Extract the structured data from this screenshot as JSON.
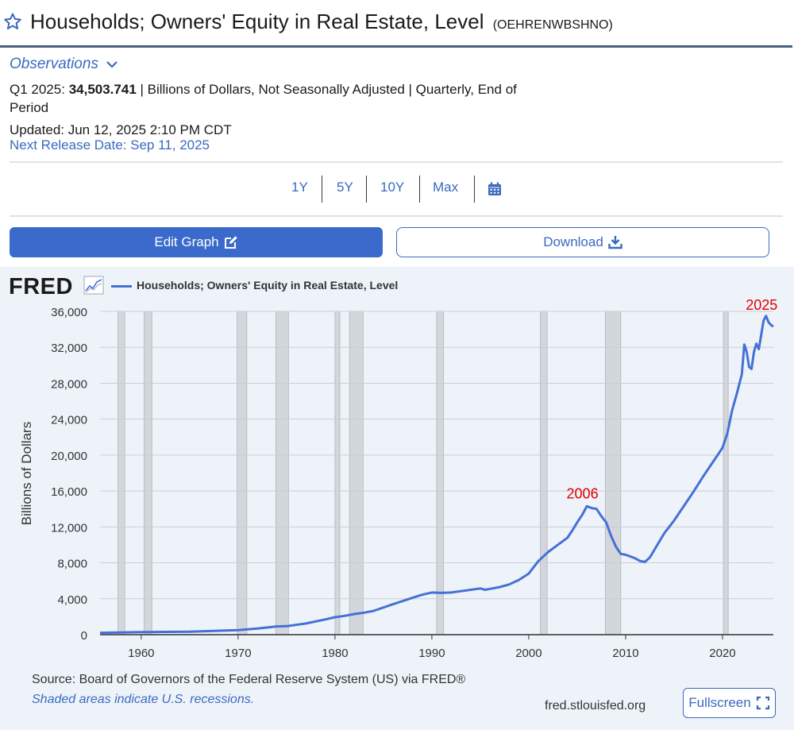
{
  "header": {
    "title": "Households; Owners' Equity in Real Estate, Level",
    "series_id": "(OEHRENWBSHNO)",
    "star_icon": "star-outline-icon"
  },
  "observations": {
    "toggle_label": "Observations",
    "period": "Q1 2025:",
    "value": "34,503.741",
    "details": "| Billions of Dollars, Not Seasonally Adjusted | Quarterly, End of Period",
    "updated": "Updated: Jun 12, 2025 2:10 PM CDT",
    "next_release": "Next Release Date: Sep 11, 2025"
  },
  "ranges": [
    "1Y",
    "5Y",
    "10Y",
    "Max"
  ],
  "buttons": {
    "edit": "Edit Graph",
    "download": "Download",
    "fullscreen": "Fullscreen"
  },
  "chart_header": {
    "logo": "FRED",
    "legend": "Households; Owners' Equity in Real Estate, Level"
  },
  "footer": {
    "source": "Source: Board of Governors of the Federal Reserve System (US) via FRED®",
    "shaded_note": "Shaded areas indicate U.S. recessions.",
    "url": "fred.stlouisfed.org"
  },
  "colors": {
    "line": "#4570d6",
    "accent": "#3a6acb",
    "annotation": "#e00000",
    "recession": "#d3d6da"
  },
  "chart_data": {
    "type": "line",
    "title": "Households; Owners' Equity in Real Estate, Level",
    "xlabel": "",
    "ylabel": "Billions of Dollars",
    "xlim": [
      1955.75,
      2025.25
    ],
    "ylim": [
      0,
      36000
    ],
    "yticks": [
      0,
      4000,
      8000,
      12000,
      16000,
      20000,
      24000,
      28000,
      32000,
      36000
    ],
    "ytick_labels": [
      "0",
      "4,000",
      "8,000",
      "12,000",
      "16,000",
      "20,000",
      "24,000",
      "28,000",
      "32,000",
      "36,000"
    ],
    "xticks": [
      1960,
      1970,
      1980,
      1990,
      2000,
      2010,
      2020
    ],
    "grid": "horizontal",
    "recessions": [
      [
        1957.6,
        1958.3
      ],
      [
        1960.3,
        1961.1
      ],
      [
        1969.9,
        1970.9
      ],
      [
        1973.9,
        1975.2
      ],
      [
        1980.0,
        1980.5
      ],
      [
        1981.5,
        1982.9
      ],
      [
        1990.5,
        1991.2
      ],
      [
        2001.2,
        2001.9
      ],
      [
        2007.9,
        2009.5
      ],
      [
        2020.1,
        2020.3
      ]
    ],
    "annotations": [
      {
        "text": "2006",
        "x": 2006.2,
        "y": 14300
      },
      {
        "text": "2025",
        "x": 2024.7,
        "y": 35300
      }
    ],
    "series": [
      {
        "name": "Households; Owners' Equity in Real Estate, Level",
        "x": [
          1955.75,
          1960,
          1965,
          1970,
          1972,
          1974,
          1975,
          1977,
          1979,
          1980,
          1981,
          1982,
          1983,
          1984,
          1986,
          1988,
          1989,
          1990,
          1991,
          1992,
          1993,
          1994,
          1995,
          1995.5,
          1996,
          1997,
          1998,
          1999,
          2000,
          2001,
          2002,
          2003,
          2004,
          2004.5,
          2005,
          2005.5,
          2006,
          2006.5,
          2007,
          2007.5,
          2008,
          2008.5,
          2009,
          2009.5,
          2010,
          2011,
          2011.5,
          2012,
          2012.5,
          2013,
          2014,
          2015,
          2016,
          2017,
          2018,
          2019,
          2020,
          2020.5,
          2021,
          2021.5,
          2022,
          2022.25,
          2022.5,
          2022.75,
          2023,
          2023.25,
          2023.5,
          2023.75,
          2024,
          2024.25,
          2024.5,
          2024.75,
          2025,
          2025.25
        ],
        "values": [
          200,
          280,
          330,
          500,
          680,
          920,
          950,
          1250,
          1700,
          1950,
          2100,
          2300,
          2450,
          2650,
          3400,
          4100,
          4450,
          4700,
          4650,
          4700,
          4850,
          5000,
          5150,
          5000,
          5100,
          5300,
          5600,
          6100,
          6800,
          8200,
          9200,
          10000,
          10800,
          11600,
          12500,
          13300,
          14300,
          14100,
          14000,
          13200,
          12500,
          11000,
          9800,
          9000,
          8900,
          8500,
          8200,
          8100,
          8600,
          9500,
          11300,
          12700,
          14300,
          15900,
          17600,
          19200,
          20800,
          22400,
          25000,
          26900,
          29000,
          32300,
          31500,
          29800,
          29600,
          31500,
          32400,
          31800,
          33400,
          35000,
          35500,
          34800,
          34500,
          34300
        ]
      }
    ]
  }
}
